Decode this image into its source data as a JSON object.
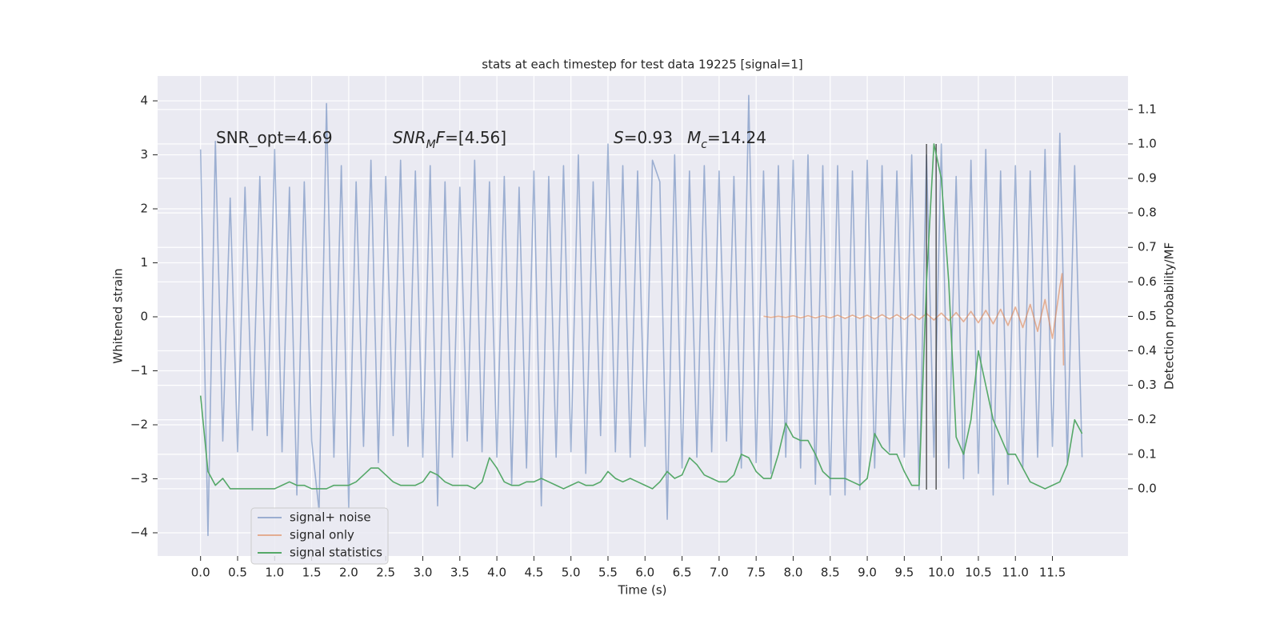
{
  "chart_data": {
    "type": "line",
    "title": "stats at each timestep for test data 19225 [signal=1]",
    "xlabel": "Time (s)",
    "ylabel": "Whitened strain",
    "y2label": "Detection probability/MF",
    "xlim": [
      -0.58,
      12.52
    ],
    "ylim": [
      -4.43,
      4.46
    ],
    "y2lim": [
      -0.195,
      1.197
    ],
    "xticks": [
      {
        "value": 0,
        "label": "0.0"
      },
      0.5,
      {
        "value": 1,
        "label": "1.0"
      },
      1.5,
      {
        "value": 2,
        "label": "2.0"
      },
      2.5,
      {
        "value": 3,
        "label": "3.0"
      },
      3.5,
      {
        "value": 4,
        "label": "4.0"
      },
      4.5,
      {
        "value": 5,
        "label": "5.0"
      },
      5.5,
      {
        "value": 6,
        "label": "6.0"
      },
      6.5,
      {
        "value": 7,
        "label": "7.0"
      },
      7.5,
      {
        "value": 8,
        "label": "8.0"
      },
      8.5,
      {
        "value": 9,
        "label": "9.0"
      },
      9.5,
      {
        "value": 10,
        "label": "10.0"
      },
      10.5,
      {
        "value": 11,
        "label": "11.0"
      },
      11.5
    ],
    "yticks": [
      {
        "value": -4,
        "label": "−4"
      },
      {
        "value": -3,
        "label": "−3"
      },
      {
        "value": -2,
        "label": "−2"
      },
      {
        "value": -1,
        "label": "−1"
      },
      0,
      1,
      2,
      3,
      4
    ],
    "y2ticks": [
      {
        "value": 0,
        "label": "0.0"
      },
      0.1,
      0.2,
      0.3,
      0.4,
      0.5,
      0.6,
      0.7,
      0.8,
      0.9,
      {
        "value": 1,
        "label": "1.0"
      },
      1.1
    ],
    "grid": true,
    "background": "#eaeaf2",
    "series": [
      {
        "name": "signal+ noise",
        "color": "#4c72b0",
        "opacity": 0.5,
        "x": [
          0,
          0.1,
          0.2,
          0.3,
          0.4,
          0.5,
          0.6,
          0.7,
          0.8,
          0.9,
          1,
          1.1,
          1.2,
          1.3,
          1.4,
          1.5,
          1.6,
          1.7,
          1.8,
          1.9,
          2,
          2.1,
          2.2,
          2.3,
          2.4,
          2.5,
          2.6,
          2.7,
          2.8,
          2.9,
          3,
          3.1,
          3.2,
          3.3,
          3.4,
          3.5,
          3.6,
          3.7,
          3.8,
          3.9,
          4,
          4.1,
          4.2,
          4.3,
          4.4,
          4.5,
          4.6,
          4.7,
          4.8,
          4.9,
          5,
          5.1,
          5.2,
          5.3,
          5.4,
          5.5,
          5.6,
          5.7,
          5.8,
          5.9,
          6,
          6.1,
          6.2,
          6.3,
          6.4,
          6.5,
          6.6,
          6.7,
          6.8,
          6.9,
          7,
          7.1,
          7.2,
          7.3,
          7.4,
          7.5,
          7.6,
          7.7,
          7.8,
          7.9,
          8,
          8.1,
          8.2,
          8.3,
          8.4,
          8.5,
          8.6,
          8.7,
          8.8,
          8.9,
          9,
          9.1,
          9.2,
          9.3,
          9.4,
          9.5,
          9.6,
          9.7,
          9.8,
          9.9,
          10,
          10.1,
          10.2,
          10.3,
          10.4,
          10.5,
          10.6,
          10.7,
          10.8,
          10.9,
          11,
          11.1,
          11.2,
          11.3,
          11.4,
          11.5,
          11.6,
          11.7,
          11.8,
          11.9
        ],
        "values": [
          3.1,
          -4.05,
          3.25,
          -2.3,
          2.2,
          -2.5,
          2.4,
          -2.1,
          2.6,
          -2.2,
          3.1,
          -2.5,
          2.4,
          -3.3,
          2.5,
          -2.3,
          -3.6,
          3.95,
          -2.6,
          2.8,
          -3.55,
          2.5,
          -2.4,
          2.9,
          -2.7,
          2.6,
          -2.2,
          2.9,
          -2.4,
          2.7,
          -2.6,
          2.8,
          -3.5,
          2.5,
          -2.6,
          2.4,
          -2.3,
          2.9,
          -2.5,
          2.5,
          -2.6,
          2.6,
          -3.1,
          2.4,
          -2.8,
          2.7,
          -3.5,
          2.6,
          -2.6,
          2.8,
          -2.5,
          3.0,
          -2.9,
          2.5,
          -2.2,
          3.2,
          -2.5,
          2.8,
          -2.6,
          2.7,
          -2.4,
          2.9,
          2.5,
          -3.75,
          3.0,
          -2.8,
          2.7,
          -2.6,
          2.8,
          -2.5,
          2.7,
          -2.3,
          2.6,
          -2.8,
          4.1,
          -2.7,
          2.7,
          -2.9,
          2.8,
          -2.6,
          2.9,
          -2.8,
          3.0,
          -3.1,
          2.8,
          -3.3,
          2.8,
          -3.3,
          2.7,
          -3.2,
          2.9,
          -2.8,
          2.8,
          -2.5,
          2.7,
          -2.6,
          3.0,
          -3.2,
          3.0,
          -2.6,
          3.2,
          -2.8,
          2.6,
          -3.0,
          2.9,
          -2.9,
          3.1,
          -3.3,
          2.7,
          -3.1,
          2.8,
          -2.8,
          2.7,
          -2.6,
          3.1,
          -2.4,
          3.4,
          -2.7,
          2.8,
          -2.6
        ]
      },
      {
        "name": "signal only",
        "color": "#dd8452",
        "opacity": 0.6,
        "x": [
          7.6,
          7.7,
          7.8,
          7.9,
          8,
          8.1,
          8.2,
          8.3,
          8.4,
          8.5,
          8.6,
          8.7,
          8.8,
          8.9,
          9,
          9.1,
          9.2,
          9.3,
          9.4,
          9.5,
          9.6,
          9.7,
          9.8,
          9.9,
          10,
          10.1,
          10.2,
          10.3,
          10.4,
          10.5,
          10.6,
          10.7,
          10.8,
          10.9,
          11,
          11.1,
          11.2,
          11.3,
          11.4,
          11.5,
          11.6,
          11.63,
          11.65
        ],
        "values": [
          0.01,
          -0.01,
          0.01,
          -0.01,
          0.02,
          -0.02,
          0.02,
          -0.02,
          0.02,
          -0.02,
          0.03,
          -0.03,
          0.03,
          -0.03,
          0.03,
          -0.04,
          0.04,
          -0.04,
          0.04,
          -0.05,
          0.05,
          -0.05,
          0.06,
          -0.06,
          0.07,
          -0.07,
          0.08,
          -0.09,
          0.1,
          -0.11,
          0.12,
          -0.13,
          0.14,
          -0.16,
          0.18,
          -0.2,
          0.23,
          -0.27,
          0.32,
          -0.4,
          0.55,
          0.8,
          -0.9
        ]
      },
      {
        "name": "signal statistics",
        "color": "#55a868",
        "opacity": 1,
        "axis": "y2",
        "x": [
          0,
          0.1,
          0.2,
          0.3,
          0.4,
          0.5,
          0.6,
          0.7,
          0.8,
          0.9,
          1,
          1.1,
          1.2,
          1.3,
          1.4,
          1.5,
          1.6,
          1.7,
          1.8,
          1.9,
          2,
          2.1,
          2.2,
          2.3,
          2.4,
          2.5,
          2.6,
          2.7,
          2.8,
          2.9,
          3,
          3.1,
          3.2,
          3.3,
          3.4,
          3.5,
          3.6,
          3.7,
          3.8,
          3.9,
          4,
          4.1,
          4.2,
          4.3,
          4.4,
          4.5,
          4.6,
          4.7,
          4.8,
          4.9,
          5,
          5.1,
          5.2,
          5.3,
          5.4,
          5.5,
          5.6,
          5.7,
          5.8,
          5.9,
          6,
          6.1,
          6.2,
          6.3,
          6.4,
          6.5,
          6.6,
          6.7,
          6.8,
          6.9,
          7,
          7.1,
          7.2,
          7.3,
          7.4,
          7.5,
          7.6,
          7.7,
          7.8,
          7.9,
          8,
          8.1,
          8.2,
          8.3,
          8.4,
          8.5,
          8.6,
          8.7,
          8.8,
          8.9,
          9,
          9.1,
          9.2,
          9.3,
          9.4,
          9.5,
          9.6,
          9.7,
          9.8,
          9.9,
          10,
          10.1,
          10.2,
          10.3,
          10.4,
          10.5,
          10.6,
          10.7,
          10.8,
          10.9,
          11,
          11.1,
          11.2,
          11.3,
          11.4,
          11.5,
          11.6,
          11.7,
          11.8,
          11.9
        ],
        "values": [
          0.27,
          0.05,
          0.01,
          0.03,
          0,
          0,
          0,
          0,
          0,
          0,
          0,
          0.01,
          0.02,
          0.01,
          0.01,
          0,
          0,
          0,
          0.01,
          0.01,
          0.01,
          0.02,
          0.04,
          0.06,
          0.06,
          0.04,
          0.02,
          0.01,
          0.01,
          0.01,
          0.02,
          0.05,
          0.04,
          0.02,
          0.01,
          0.01,
          0.01,
          0,
          0.02,
          0.09,
          0.06,
          0.02,
          0.01,
          0.01,
          0.02,
          0.02,
          0.03,
          0.02,
          0.01,
          0,
          0.01,
          0.02,
          0.01,
          0.01,
          0.02,
          0.05,
          0.03,
          0.02,
          0.03,
          0.02,
          0.01,
          0,
          0.02,
          0.05,
          0.03,
          0.04,
          0.09,
          0.07,
          0.04,
          0.03,
          0.02,
          0.02,
          0.04,
          0.1,
          0.09,
          0.05,
          0.03,
          0.03,
          0.1,
          0.19,
          0.15,
          0.14,
          0.14,
          0.1,
          0.05,
          0.03,
          0.03,
          0.03,
          0.02,
          0.01,
          0.03,
          0.16,
          0.12,
          0.1,
          0.1,
          0.05,
          0.01,
          0.01,
          0.6,
          1.0,
          0.9,
          0.6,
          0.15,
          0.1,
          0.2,
          0.4,
          0.3,
          0.2,
          0.15,
          0.1,
          0.1,
          0.06,
          0.02,
          0.01,
          0,
          0.01,
          0.02,
          0.07,
          0.2,
          0.16
        ]
      }
    ],
    "vlines": {
      "x": [
        9.8,
        9.93
      ],
      "ymin": -3.2,
      "ymax": 3.2,
      "color": "#333333"
    },
    "annotations": [
      {
        "parts": [
          {
            "text": "SNR_opt=4.69"
          }
        ]
      },
      {
        "parts": [
          {
            "text": "SNR",
            "italic": true
          },
          {
            "text": "M",
            "italic": true,
            "sub": true
          },
          {
            "text": "F",
            "italic": true
          },
          {
            "text": "=[4.56]"
          }
        ]
      },
      {
        "parts": [
          {
            "text": "S",
            "italic": true
          },
          {
            "text": "=0.93"
          }
        ]
      },
      {
        "parts": [
          {
            "text": "M",
            "italic": true
          },
          {
            "text": "c",
            "italic": true,
            "sub": true
          },
          {
            "text": "=14.24"
          }
        ]
      }
    ]
  }
}
